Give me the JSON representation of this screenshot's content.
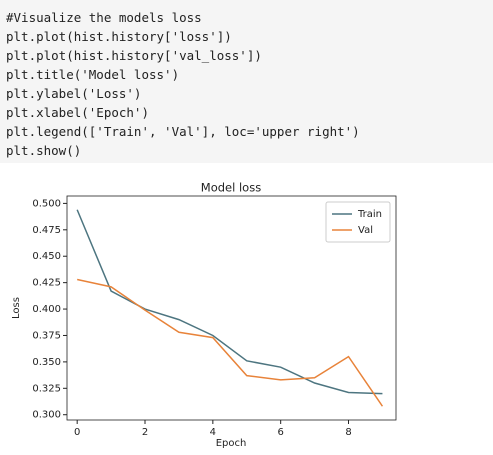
{
  "code": [
    "#Visualize the models loss",
    "plt.plot(hist.history['loss'])",
    "plt.plot(hist.history['val_loss'])",
    "plt.title('Model loss')",
    "plt.ylabel('Loss')",
    "plt.xlabel('Epoch')",
    "plt.legend(['Train', 'Val'], loc='upper right')",
    "plt.show()"
  ],
  "chart_data": {
    "type": "line",
    "title": "Model loss",
    "x_label": "Epoch",
    "y_label": "Loss",
    "x": [
      0,
      1,
      2,
      3,
      4,
      5,
      6,
      7,
      8,
      9
    ],
    "series": [
      {
        "name": "Train",
        "color": "#4d7580",
        "values": [
          0.494,
          0.417,
          0.4,
          0.39,
          0.375,
          0.351,
          0.345,
          0.33,
          0.321,
          0.32
        ]
      },
      {
        "name": "Val",
        "color": "#e8833a",
        "values": [
          0.428,
          0.421,
          0.399,
          0.378,
          0.373,
          0.337,
          0.333,
          0.335,
          0.355,
          0.308
        ]
      }
    ],
    "xlim": [
      -0.3,
      9.4
    ],
    "ylim": [
      0.295,
      0.507
    ],
    "xticks": [
      0,
      2,
      4,
      6,
      8
    ],
    "yticks": [
      {
        "value": 0.3,
        "label": "0.300"
      },
      {
        "value": 0.325,
        "label": "0.325"
      },
      {
        "value": 0.35,
        "label": "0.350"
      },
      {
        "value": 0.375,
        "label": "0.375"
      },
      {
        "value": 0.4,
        "label": "0.400"
      },
      {
        "value": 0.425,
        "label": "0.425"
      },
      {
        "value": 0.45,
        "label": "0.450"
      },
      {
        "value": 0.475,
        "label": "0.475"
      },
      {
        "value": 0.5,
        "label": "0.500"
      }
    ],
    "legend": "upper right"
  }
}
